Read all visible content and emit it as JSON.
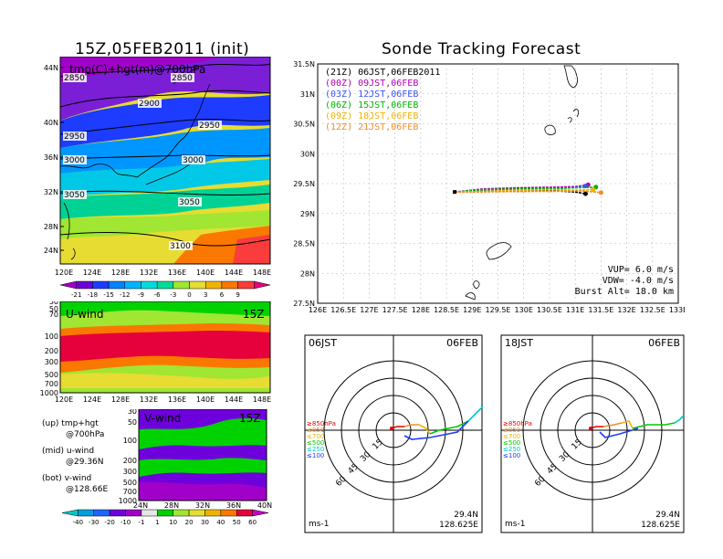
{
  "left_title": "15Z,05FEB2011 (init)",
  "right_title": "Sonde Tracking Forecast",
  "top_map": {
    "label": "tmp(C)+hgt(m)@700hPa",
    "lat_ticks": [
      "44N",
      "40N",
      "36N",
      "32N",
      "28N",
      "24N"
    ],
    "lon_ticks": [
      "120E",
      "124E",
      "128E",
      "132E",
      "136E",
      "140E",
      "144E",
      "148E"
    ],
    "contours": [
      {
        "text": "2850",
        "where": "top-left"
      },
      {
        "text": "2850",
        "where": "top-mid"
      },
      {
        "text": "2900",
        "where": "upper"
      },
      {
        "text": "2950",
        "where": "left"
      },
      {
        "text": "2950",
        "where": "right"
      },
      {
        "text": "3000",
        "where": "left"
      },
      {
        "text": "3000",
        "where": "mid"
      },
      {
        "text": "3050",
        "where": "left"
      },
      {
        "text": "3050",
        "where": "mid"
      },
      {
        "text": "3100",
        "where": "bottom"
      }
    ],
    "colorbar": [
      "-21",
      "-18",
      "-15",
      "-12",
      "-9",
      "-6",
      "-3",
      "0",
      "3",
      "6",
      "9"
    ],
    "colorbar_colors": [
      "#a000c8",
      "#6e00dc",
      "#1e3cff",
      "#0082ff",
      "#00b4ff",
      "#00dcdc",
      "#00dc96",
      "#a0e632",
      "#e6dc32",
      "#f0b400",
      "#fa7800",
      "#fa3c3c",
      "#e6007a"
    ]
  },
  "uwind": {
    "label": "U-wind",
    "time": "15Z",
    "y_ticks": [
      "30",
      "50",
      "70",
      "100",
      "200",
      "300",
      "500",
      "700",
      "1000"
    ],
    "x_ticks": [
      "120E",
      "124E",
      "128E",
      "132E",
      "136E",
      "140E",
      "144E",
      "148E"
    ]
  },
  "vwind": {
    "label": "V-wind",
    "time": "15Z",
    "y_ticks": [
      "30",
      "50",
      "100",
      "200",
      "300",
      "500",
      "700",
      "1000"
    ],
    "x_ticks": [
      "24N",
      "28N",
      "32N",
      "36N",
      "40N"
    ]
  },
  "wind_colorbar": {
    "labels": [
      "-40",
      "-30",
      "-20",
      "-10",
      "-1",
      "1",
      "10",
      "20",
      "30",
      "40",
      "50",
      "60"
    ],
    "colors": [
      "#00c8c8",
      "#00a0dc",
      "#1e64ff",
      "#6e00dc",
      "#a000c8",
      "#e6e6e6",
      "#00d200",
      "#a0e632",
      "#e6dc32",
      "#f0b400",
      "#fa7800",
      "#e6003c",
      "#c800c8"
    ]
  },
  "notes": [
    {
      "line1": "(up) tmp+hgt",
      "line2": "@700hPa"
    },
    {
      "line1": "(mid) u-wind",
      "line2": "@29.36N"
    },
    {
      "line1": "(bot) v-wind",
      "line2": "@128.66E"
    }
  ],
  "track_map": {
    "lat_ticks": [
      "31.5N",
      "31N",
      "30.5N",
      "30N",
      "29.5N",
      "29N",
      "28.5N",
      "28N",
      "27.5N"
    ],
    "lon_ticks": [
      "126E",
      "126.5E",
      "127E",
      "127.5E",
      "128E",
      "128.5E",
      "129E",
      "129.5E",
      "130E",
      "130.5E",
      "131E",
      "131.5E",
      "132E",
      "132.5E",
      "133E"
    ],
    "legend": [
      {
        "code": "(21Z)",
        "text": "06JST,06FEB2011",
        "color": "#000000"
      },
      {
        "code": "(00Z)",
        "text": "09JST,06FEB",
        "color": "#b400b4"
      },
      {
        "code": "(03Z)",
        "text": "12JST,06FEB",
        "color": "#3c50ff"
      },
      {
        "code": "(06Z)",
        "text": "15JST,06FEB",
        "color": "#00b400"
      },
      {
        "code": "(09Z)",
        "text": "18JST,06FEB",
        "color": "#f0b400"
      },
      {
        "code": "(12Z)",
        "text": "21JST,06FEB",
        "color": "#f08c28"
      }
    ],
    "vup": "VUP= 6.0 m/s",
    "vdw": "VDW= -4.0 m/s",
    "burst": "Burst Alt= 18.0 km"
  },
  "chart_data": [
    {
      "type": "line",
      "title": "Sonde Tracking Forecast",
      "xlim": [
        126,
        133
      ],
      "ylim": [
        27.5,
        31.5
      ],
      "start": [
        128.66,
        29.36
      ],
      "series": [
        {
          "name": "(21Z) 06JST,06FEB2011",
          "color": "#000000",
          "x": [
            128.66,
            129.2,
            129.9,
            130.6,
            131.0,
            131.2
          ],
          "y": [
            29.36,
            29.38,
            29.37,
            29.38,
            29.36,
            29.33
          ]
        },
        {
          "name": "(00Z) 09JST,06FEB",
          "color": "#b400b4",
          "x": [
            128.66,
            129.2,
            129.9,
            130.6,
            131.0,
            131.25
          ],
          "y": [
            29.36,
            29.41,
            29.43,
            29.44,
            29.45,
            29.48
          ]
        },
        {
          "name": "(03Z) 12JST,06FEB",
          "color": "#3c50ff",
          "x": [
            128.66,
            129.2,
            129.9,
            130.6,
            131.0,
            131.2
          ],
          "y": [
            29.36,
            29.39,
            29.4,
            29.41,
            29.44,
            29.46
          ]
        },
        {
          "name": "(06Z) 15JST,06FEB",
          "color": "#00b400",
          "x": [
            128.66,
            129.2,
            129.9,
            130.6,
            131.0,
            131.4
          ],
          "y": [
            29.36,
            29.4,
            29.41,
            29.42,
            29.43,
            29.44
          ]
        },
        {
          "name": "(09Z) 18JST,06FEB",
          "color": "#f0b400",
          "x": [
            128.66,
            129.2,
            129.9,
            130.6,
            131.0,
            131.35
          ],
          "y": [
            29.36,
            29.37,
            29.39,
            29.4,
            29.39,
            29.4
          ]
        },
        {
          "name": "(12Z) 21JST,06FEB",
          "color": "#f08c28",
          "x": [
            128.66,
            129.2,
            129.9,
            130.6,
            131.1,
            131.5
          ],
          "y": [
            29.36,
            29.36,
            29.37,
            29.37,
            29.38,
            29.35
          ]
        }
      ]
    }
  ],
  "hodographs": [
    {
      "time": "06JST",
      "date": "06FEB",
      "lat": "29.4N",
      "lon": "128.625E",
      "unit": "ms-1",
      "ring_labels": [
        "15",
        "30",
        "45",
        "60"
      ],
      "levels": [
        {
          "label": "≥850hPa",
          "color": "#e60000"
        },
        {
          "label": "≤850",
          "color": "#f08c28"
        },
        {
          "label": "≤700",
          "color": "#f0b400"
        },
        {
          "label": "≤500",
          "color": "#00c800"
        },
        {
          "label": "≤250",
          "color": "#00c8c8"
        },
        {
          "label": "≤100",
          "color": "#1e3cff"
        }
      ]
    },
    {
      "time": "18JST",
      "date": "06FEB",
      "lat": "29.4N",
      "lon": "128.625E",
      "unit": "ms-1",
      "ring_labels": [
        "15",
        "30",
        "45",
        "60"
      ],
      "levels": [
        {
          "label": "≥850hPa",
          "color": "#e60000"
        },
        {
          "label": "≤850",
          "color": "#f08c28"
        },
        {
          "label": "≤700",
          "color": "#f0b400"
        },
        {
          "label": "≤500",
          "color": "#00c800"
        },
        {
          "label": "≤250",
          "color": "#00c8c8"
        },
        {
          "label": "≤100",
          "color": "#1e3cff"
        }
      ]
    }
  ]
}
